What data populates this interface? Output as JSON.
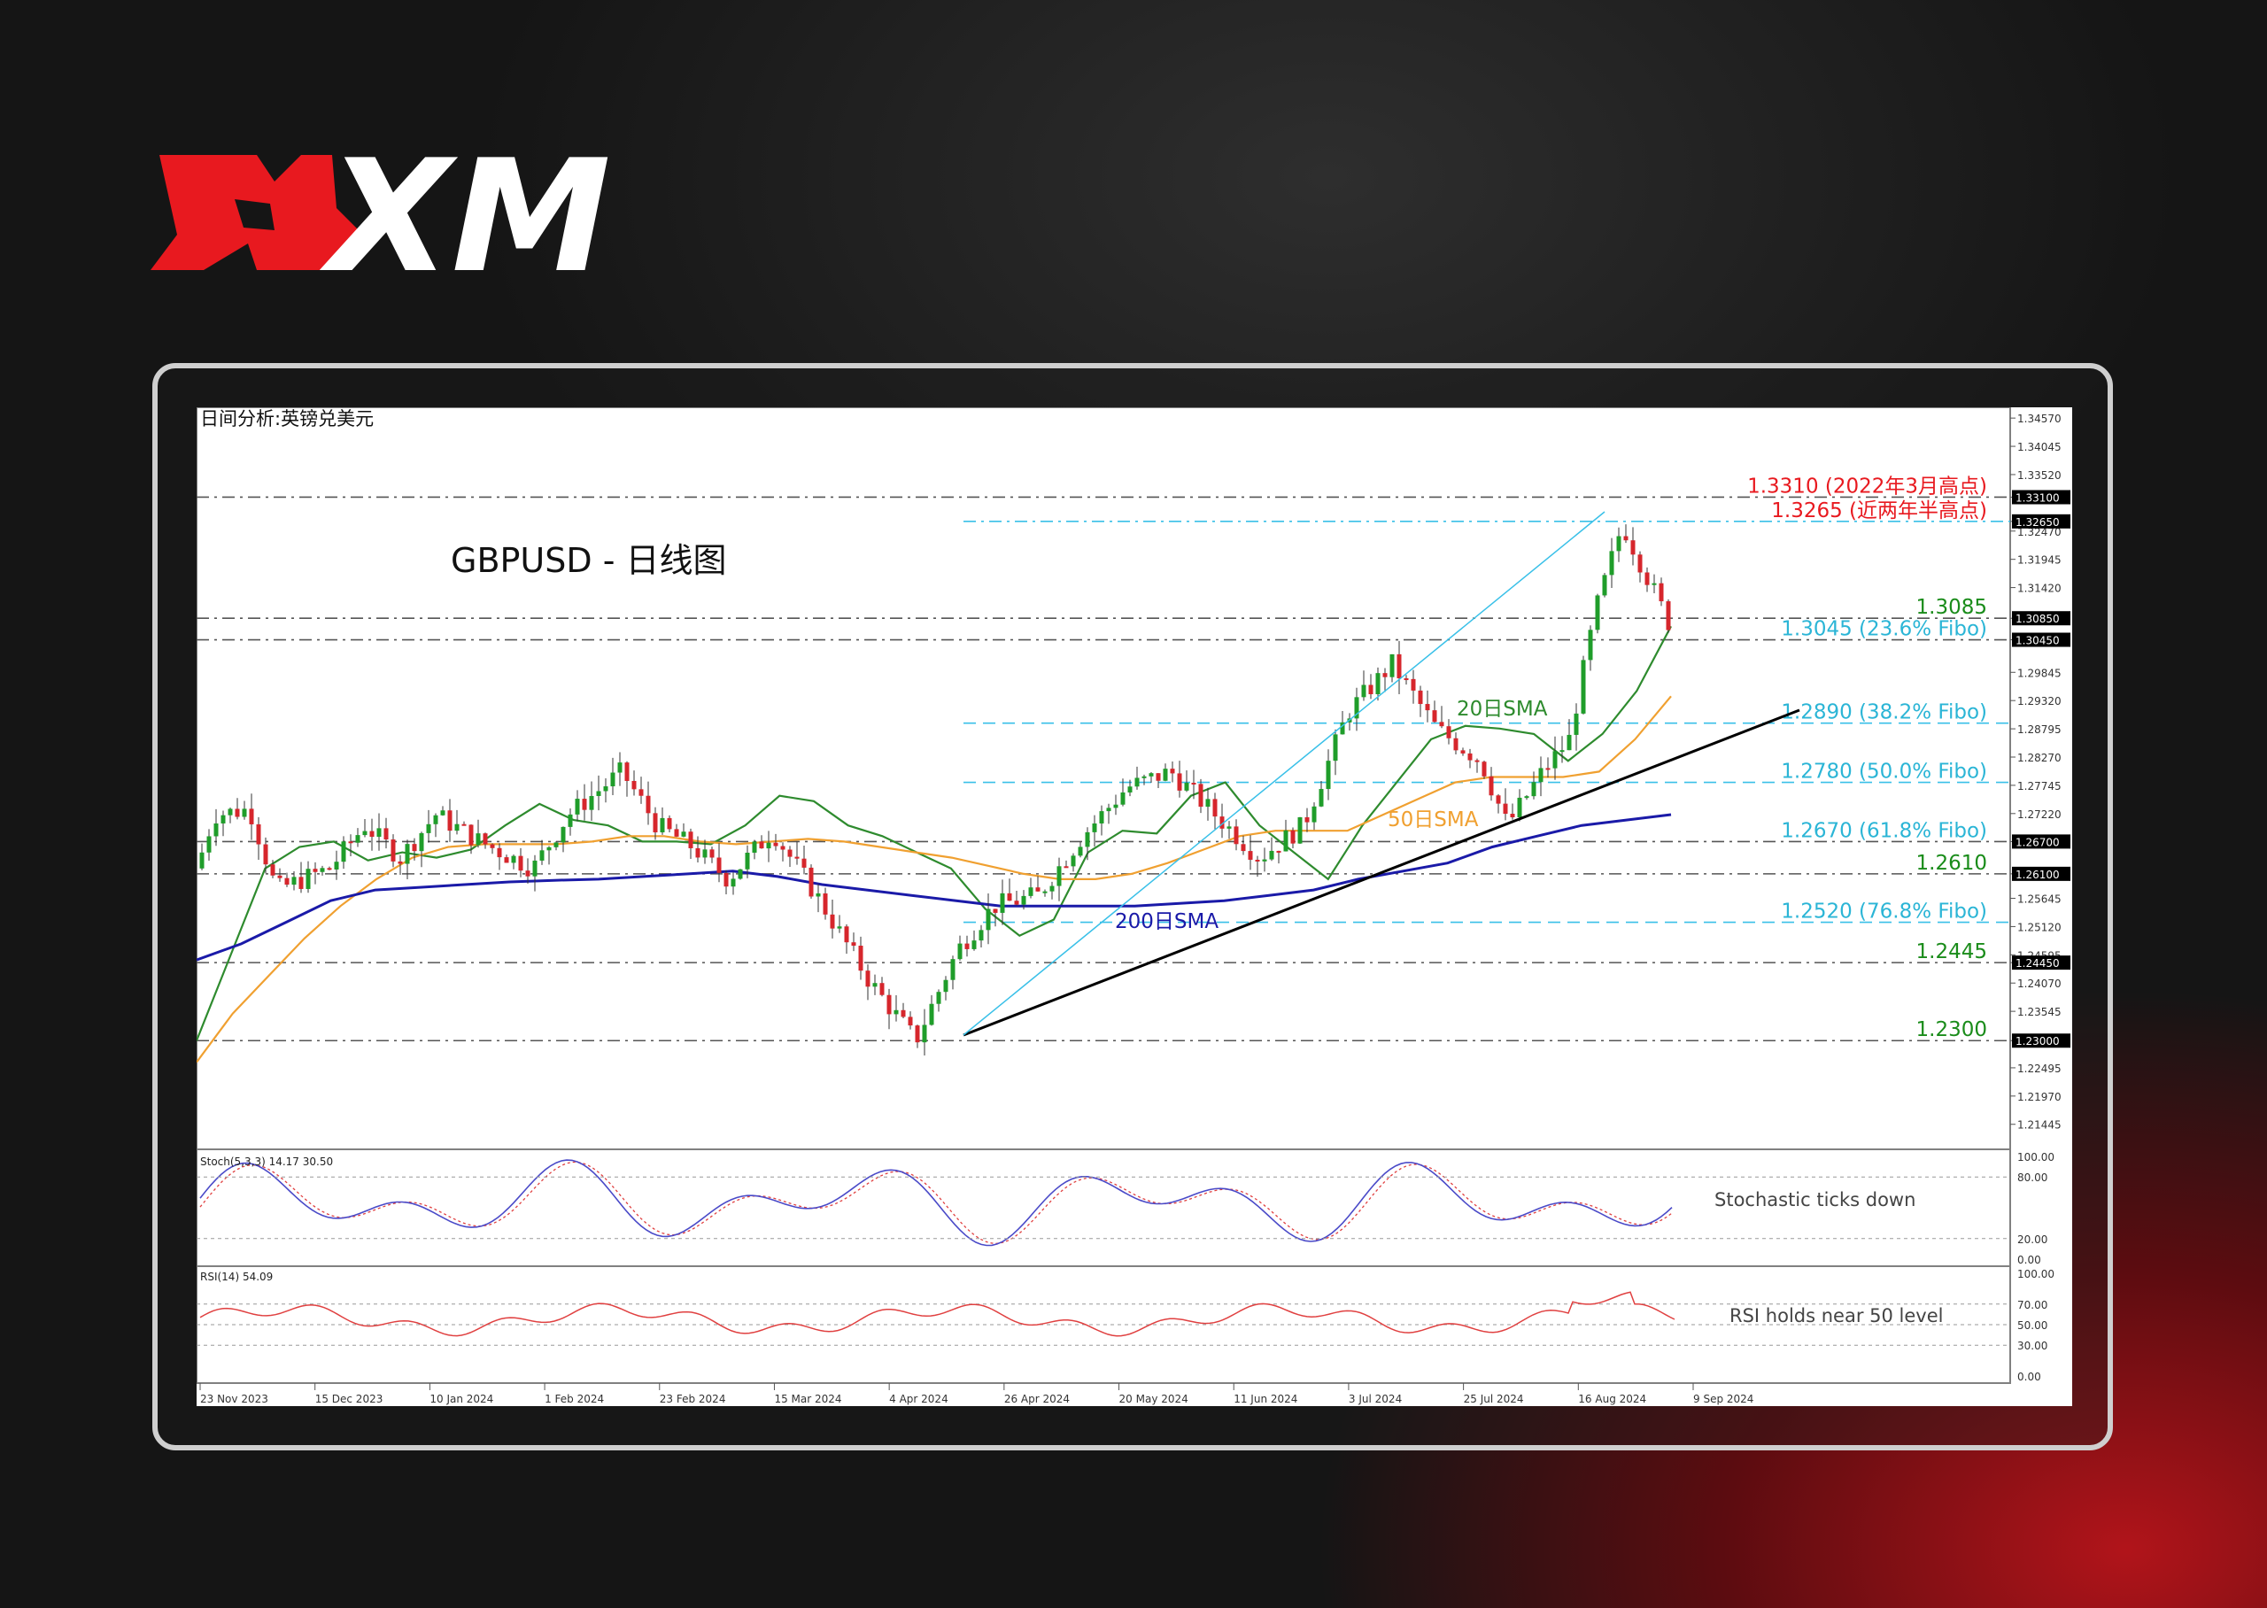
{
  "brand": {
    "logo_text": "XM",
    "accent": "#e8191f"
  },
  "chart_data": {
    "type": "candlestick",
    "symbol_header": "日间分析:英镑兑美元",
    "title": "GBPUSD - 日线图",
    "price_axis": {
      "min": 1.2098,
      "max": 1.3477,
      "ticks": [
        "1.34570",
        "1.34045",
        "1.33520",
        "1.33100",
        "1.32650",
        "1.32470",
        "1.31945",
        "1.31420",
        "1.30850",
        "1.30450",
        "1.29845",
        "1.29320",
        "1.28795",
        "1.28270",
        "1.27745",
        "1.27220",
        "1.26700",
        "1.26100",
        "1.25645",
        "1.25120",
        "1.24595",
        "1.24450",
        "1.24070",
        "1.23545",
        "1.23000",
        "1.22495",
        "1.21970",
        "1.21445"
      ]
    },
    "x_ticks": [
      "23 Nov 2023",
      "15 Dec 2023",
      "10 Jan 2024",
      "1 Feb 2024",
      "23 Feb 2024",
      "15 Mar 2024",
      "4 Apr 2024",
      "26 Apr 2024",
      "20 May 2024",
      "11 Jun 2024",
      "3 Jul 2024",
      "25 Jul 2024",
      "16 Aug 2024",
      "9 Sep 2024"
    ],
    "levels": [
      {
        "value": 1.331,
        "label": "1.3310 (2022年3月高点)",
        "color": "#e8191f",
        "style": "black-dashdot"
      },
      {
        "value": 1.3265,
        "label": "1.3265 (近两年半高点)",
        "color": "#e8191f",
        "style": "dashdot"
      },
      {
        "value": 1.3085,
        "label": "1.3085",
        "color": "#1a8c1a",
        "style": "black-dashdot"
      },
      {
        "value": 1.3045,
        "label": "1.3045 (23.6% Fibo)",
        "color": "#2bb5d6",
        "style": "black-dashdot"
      },
      {
        "value": 1.289,
        "label": "1.2890 (38.2% Fibo)",
        "color": "#2bb5d6",
        "style": "fibo"
      },
      {
        "value": 1.278,
        "label": "1.2780 (50.0% Fibo)",
        "color": "#2bb5d6",
        "style": "fibo"
      },
      {
        "value": 1.267,
        "label": "1.2670 (61.8% Fibo)",
        "color": "#2bb5d6",
        "style": "black-dashdot"
      },
      {
        "value": 1.261,
        "label": "1.2610",
        "color": "#1a8c1a",
        "style": "black-dashdot"
      },
      {
        "value": 1.252,
        "label": "1.2520 (76.8% Fibo)",
        "color": "#2bb5d6",
        "style": "fibo"
      },
      {
        "value": 1.2445,
        "label": "1.2445",
        "color": "#1a8c1a",
        "style": "black-dashdot"
      },
      {
        "value": 1.23,
        "label": "1.2300",
        "color": "#1a8c1a",
        "style": "black-dashdot"
      }
    ],
    "axis_boxes": [
      "1.33100",
      "1.32650",
      "1.30850",
      "1.30450",
      "1.26700",
      "1.26100",
      "1.24450",
      "1.23000"
    ],
    "series": [
      {
        "name": "20日SMA",
        "color": "#2e8b2e",
        "values": [
          1.23,
          1.246,
          1.262,
          1.266,
          1.267,
          1.2635,
          1.265,
          1.264,
          1.2655,
          1.27,
          1.274,
          1.271,
          1.27,
          1.267,
          1.267,
          1.2665,
          1.27,
          1.2755,
          1.2745,
          1.27,
          1.268,
          1.265,
          1.262,
          1.2545,
          1.2495,
          1.2525,
          1.265,
          1.269,
          1.2685,
          1.2755,
          1.278,
          1.27,
          1.265,
          1.26,
          1.27,
          1.278,
          1.286,
          1.2885,
          1.288,
          1.287,
          1.282,
          1.287,
          1.295,
          1.307
        ]
      },
      {
        "name": "50日SMA",
        "color": "#f0a030",
        "values": [
          1.226,
          1.235,
          1.242,
          1.249,
          1.255,
          1.26,
          1.264,
          1.266,
          1.2665,
          1.2665,
          1.2665,
          1.267,
          1.268,
          1.268,
          1.267,
          1.2665,
          1.267,
          1.2675,
          1.267,
          1.266,
          1.265,
          1.264,
          1.2625,
          1.261,
          1.26,
          1.26,
          1.261,
          1.263,
          1.2655,
          1.268,
          1.269,
          1.269,
          1.269,
          1.272,
          1.275,
          1.278,
          1.279,
          1.279,
          1.279,
          1.28,
          1.286,
          1.294
        ]
      },
      {
        "name": "200日SMA",
        "color": "#1a1aa8",
        "values": [
          1.245,
          1.248,
          1.252,
          1.256,
          1.258,
          1.2585,
          1.259,
          1.2595,
          1.2598,
          1.26,
          1.2605,
          1.261,
          1.2615,
          1.2605,
          1.259,
          1.258,
          1.257,
          1.256,
          1.255,
          1.255,
          1.255,
          1.255,
          1.2555,
          1.256,
          1.257,
          1.258,
          1.26,
          1.2615,
          1.263,
          1.266,
          1.268,
          1.27,
          1.271,
          1.272
        ]
      }
    ],
    "stochastic": {
      "label": "Stoch(5,3,3) 14.17 30.50",
      "annotation": "Stochastic ticks down",
      "ticks": [
        "100.00",
        "80.00",
        "20.00",
        "0.00"
      ],
      "k_color": "#4a4ac8",
      "d_color": "#e04040"
    },
    "rsi": {
      "label": "RSI(14) 54.09",
      "annotation": "RSI holds near 50 level",
      "ticks": [
        "100.00",
        "70.00",
        "50.00",
        "30.00",
        "0.00"
      ],
      "color": "#e04040"
    }
  }
}
